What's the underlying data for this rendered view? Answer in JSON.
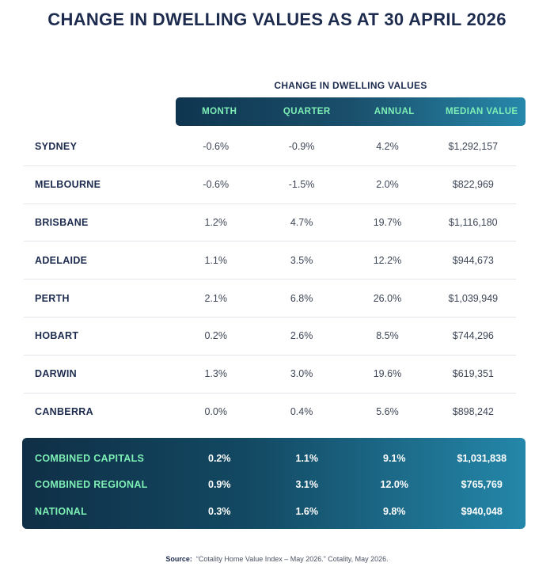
{
  "title": "CHANGE IN DWELLING VALUES AS AT 30 APRIL 2026",
  "subtitle": "CHANGE IN DWELLING VALUES",
  "columns": [
    "MONTH",
    "QUARTER",
    "ANNUAL",
    "MEDIAN VALUE"
  ],
  "rows": [
    {
      "name": "SYDNEY",
      "month": "-0.6%",
      "quarter": "-0.9%",
      "annual": "4.2%",
      "median": "$1,292,157"
    },
    {
      "name": "MELBOURNE",
      "month": "-0.6%",
      "quarter": "-1.5%",
      "annual": "2.0%",
      "median": "$822,969"
    },
    {
      "name": "BRISBANE",
      "month": "1.2%",
      "quarter": "4.7%",
      "annual": "19.7%",
      "median": "$1,116,180"
    },
    {
      "name": "ADELAIDE",
      "month": "1.1%",
      "quarter": "3.5%",
      "annual": "12.2%",
      "median": "$944,673"
    },
    {
      "name": "PERTH",
      "month": "2.1%",
      "quarter": "6.8%",
      "annual": "26.0%",
      "median": "$1,039,949"
    },
    {
      "name": "HOBART",
      "month": "0.2%",
      "quarter": "2.6%",
      "annual": "8.5%",
      "median": "$744,296"
    },
    {
      "name": "DARWIN",
      "month": "1.3%",
      "quarter": "3.0%",
      "annual": "19.6%",
      "median": "$619,351"
    },
    {
      "name": "CANBERRA",
      "month": "0.0%",
      "quarter": "0.4%",
      "annual": "5.6%",
      "median": "$898,242"
    }
  ],
  "summary": [
    {
      "name": "COMBINED CAPITALS",
      "month": "0.2%",
      "quarter": "1.1%",
      "annual": "9.1%",
      "median": "$1,031,838"
    },
    {
      "name": "COMBINED REGIONAL",
      "month": "0.9%",
      "quarter": "3.1%",
      "annual": "12.0%",
      "median": "$765,769"
    },
    {
      "name": "NATIONAL",
      "month": "0.3%",
      "quarter": "1.6%",
      "annual": "9.8%",
      "median": "$940,048"
    }
  ],
  "source": {
    "label": "Source:",
    "text": "“Cotality Home Value Index – May 2026.” Cotality, May 2026."
  },
  "colors": {
    "heading": "#1d2b4f",
    "accent_text": "#7ef0b6",
    "bar_dark": "#0f3550",
    "bar_light": "#2788ab"
  }
}
